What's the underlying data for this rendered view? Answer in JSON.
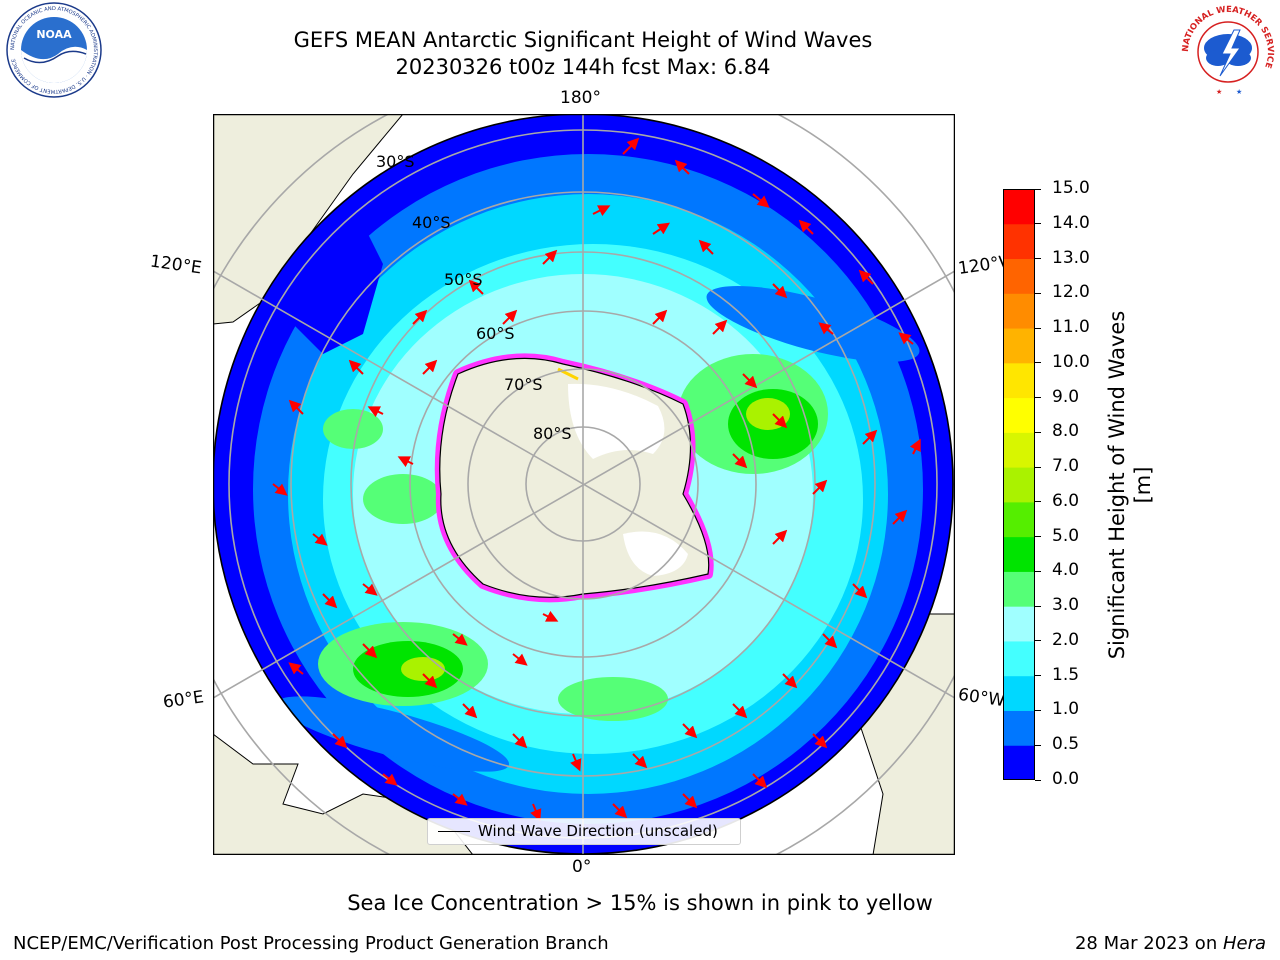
{
  "header": {
    "title_line1": "GEFS MEAN Antarctic Significant Height of Wind Waves",
    "title_line2": "20230326 t00z 144h fcst   Max: 6.84"
  },
  "logos": {
    "noaa_text": "NOAA",
    "noaa_ring_text": "NATIONAL OCEANIC AND ATMOSPHERIC ADMINISTRATION · U.S. DEPARTMENT OF COMMERCE",
    "nws_ring_text": "NATIONAL WEATHER SERVICE"
  },
  "map": {
    "longitude_labels": {
      "top": "180°",
      "bottom": "0°",
      "upper_left": "120°E",
      "lower_left": "60°E",
      "upper_right": "120°W",
      "lower_right": "60°W"
    },
    "latitude_labels": [
      "30°S",
      "40°S",
      "50°S",
      "60°S",
      "70°S",
      "80°S"
    ],
    "legend_text": "Wind Wave Direction (unscaled)"
  },
  "colorbar": {
    "label": "Significant Height of Wind Waves [m]",
    "ticks": [
      "0.0",
      "0.5",
      "1.0",
      "1.5",
      "2.0",
      "3.0",
      "4.0",
      "5.0",
      "6.0",
      "7.0",
      "8.0",
      "9.0",
      "10.0",
      "11.0",
      "12.0",
      "13.0",
      "14.0",
      "15.0"
    ],
    "colors": [
      "#0000ff",
      "#0077ff",
      "#00d8ff",
      "#44ffff",
      "#a0ffff",
      "#55ff77",
      "#00e400",
      "#55ee00",
      "#aaf200",
      "#d8f600",
      "#ffff00",
      "#ffe600",
      "#ffb300",
      "#ff8c00",
      "#ff6400",
      "#ff3200",
      "#ff0000"
    ]
  },
  "notes": {
    "sea_ice": "Sea Ice Concentration > 15% is shown in pink to yellow"
  },
  "footer": {
    "left": "NCEP/EMC/Verification Post Processing Product Generation Branch",
    "date": "28 Mar 2023 on ",
    "machine": "Hera"
  }
}
